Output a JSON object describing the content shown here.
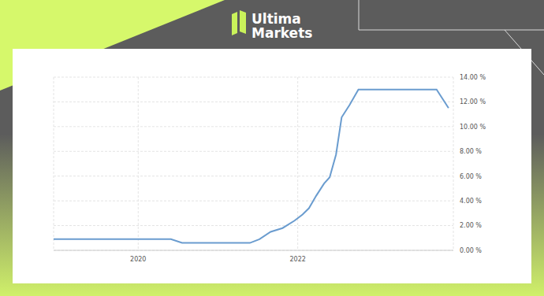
{
  "header": {
    "logo_lines": [
      "Ultima",
      "Markets"
    ]
  },
  "chart_data": {
    "type": "line",
    "x": [
      2018.94,
      2020.41,
      2020.55,
      2021.4,
      2021.52,
      2021.66,
      2021.81,
      2021.96,
      2022.06,
      2022.14,
      2022.23,
      2022.33,
      2022.4,
      2022.48,
      2022.55,
      2022.65,
      2022.76,
      2023.74,
      2023.89
    ],
    "values": [
      0.9,
      0.9,
      0.6,
      0.6,
      0.9,
      1.5,
      1.8,
      2.4,
      2.9,
      3.4,
      4.4,
      5.4,
      5.9,
      7.75,
      10.75,
      11.75,
      13.0,
      13.0,
      11.5
    ],
    "color": "#6a9ccf",
    "xlim": [
      2018.94,
      2023.95
    ],
    "xticks": [
      2020,
      2022
    ],
    "ylim": [
      0,
      14
    ],
    "yticks": [
      {
        "value": 0,
        "label": "0.00 %"
      },
      {
        "value": 2,
        "label": "2.00 %"
      },
      {
        "value": 4,
        "label": "4.00 %"
      },
      {
        "value": 6,
        "label": "6.00 %"
      },
      {
        "value": 8,
        "label": "8.00 %"
      },
      {
        "value": 10,
        "label": "10.00 %"
      },
      {
        "value": 12,
        "label": "12.00 %"
      },
      {
        "value": 14,
        "label": "14.00 %"
      }
    ],
    "grid": true
  }
}
